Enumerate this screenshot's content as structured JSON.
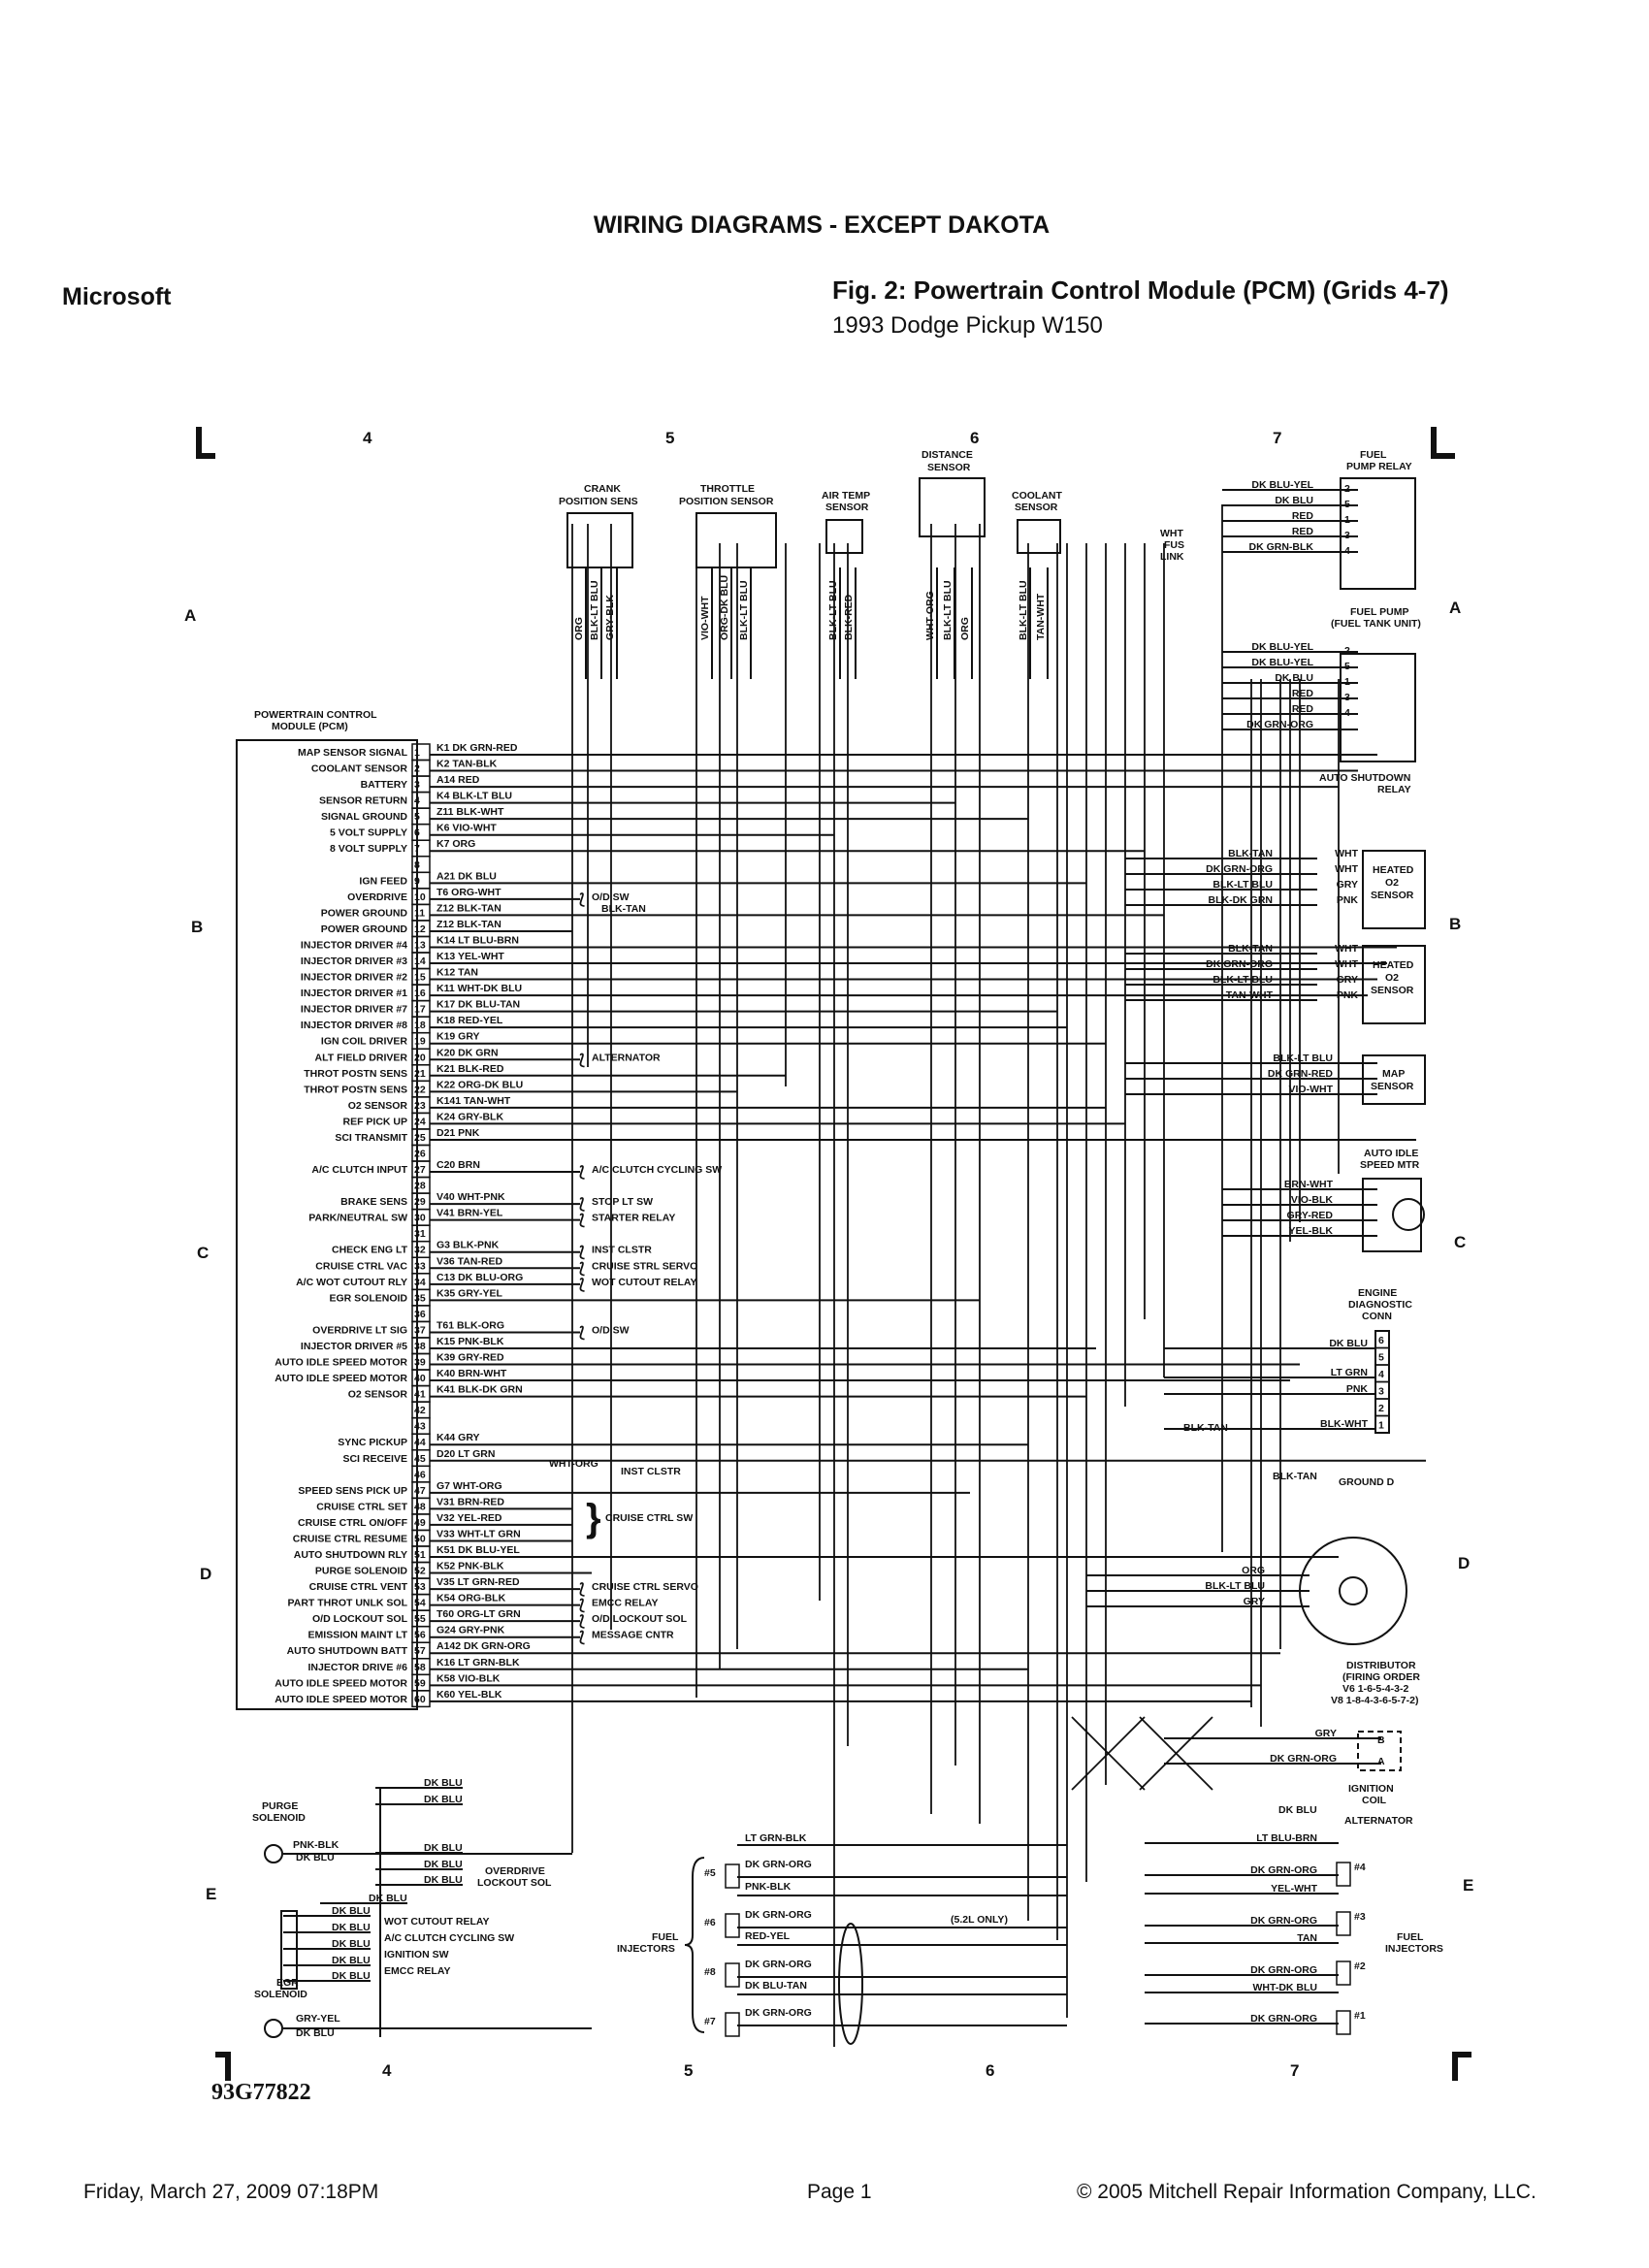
{
  "header": {
    "title": "WIRING DIAGRAMS - EXCEPT DAKOTA",
    "source": "Microsoft",
    "figure_title": "Fig. 2: Powertrain Control Module (PCM) (Grids 4-7)",
    "vehicle": "1993 Dodge Pickup W150"
  },
  "grid": {
    "columns": [
      "4",
      "5",
      "6",
      "7"
    ],
    "rows": [
      "A",
      "B",
      "C",
      "D",
      "E"
    ]
  },
  "pcm": {
    "title_line1": "POWERTRAIN CONTROL",
    "title_line2": "MODULE (PCM)",
    "pins": [
      {
        "num": "1",
        "func": "MAP SENSOR SIGNAL",
        "wire": "K1 DK GRN-RED",
        "dest": ""
      },
      {
        "num": "2",
        "func": "COOLANT SENSOR",
        "wire": "K2 TAN-BLK",
        "dest": ""
      },
      {
        "num": "3",
        "func": "BATTERY",
        "wire": "A14 RED",
        "dest": ""
      },
      {
        "num": "4",
        "func": "SENSOR RETURN",
        "wire": "K4 BLK-LT BLU",
        "dest": ""
      },
      {
        "num": "5",
        "func": "SIGNAL GROUND",
        "wire": "Z11 BLK-WHT",
        "dest": ""
      },
      {
        "num": "6",
        "func": "5 VOLT SUPPLY",
        "wire": "K6 VIO-WHT",
        "dest": ""
      },
      {
        "num": "7",
        "func": "8 VOLT SUPPLY",
        "wire": "K7 ORG",
        "dest": ""
      },
      {
        "num": "8",
        "func": "",
        "wire": "",
        "dest": ""
      },
      {
        "num": "9",
        "func": "IGN FEED",
        "wire": "A21 DK BLU",
        "dest": ""
      },
      {
        "num": "10",
        "func": "OVERDRIVE",
        "wire": "T6 ORG-WHT",
        "dest": "O/D SW"
      },
      {
        "num": "11",
        "func": "POWER GROUND",
        "wire": "Z12 BLK-TAN",
        "dest": ""
      },
      {
        "num": "12",
        "func": "POWER GROUND",
        "wire": "Z12 BLK-TAN",
        "dest": ""
      },
      {
        "num": "13",
        "func": "INJECTOR DRIVER #4",
        "wire": "K14 LT BLU-BRN",
        "dest": ""
      },
      {
        "num": "14",
        "func": "INJECTOR DRIVER #3",
        "wire": "K13 YEL-WHT",
        "dest": ""
      },
      {
        "num": "15",
        "func": "INJECTOR DRIVER #2",
        "wire": "K12 TAN",
        "dest": ""
      },
      {
        "num": "16",
        "func": "INJECTOR DRIVER #1",
        "wire": "K11 WHT-DK BLU",
        "dest": ""
      },
      {
        "num": "17",
        "func": "INJECTOR DRIVER #7",
        "wire": "K17 DK BLU-TAN",
        "dest": ""
      },
      {
        "num": "18",
        "func": "INJECTOR DRIVER #8",
        "wire": "K18 RED-YEL",
        "dest": ""
      },
      {
        "num": "19",
        "func": "IGN COIL DRIVER",
        "wire": "K19 GRY",
        "dest": ""
      },
      {
        "num": "20",
        "func": "ALT FIELD DRIVER",
        "wire": "K20 DK GRN",
        "dest": "ALTERNATOR"
      },
      {
        "num": "21",
        "func": "THROT POSTN SENS",
        "wire": "K21 BLK-RED",
        "dest": ""
      },
      {
        "num": "22",
        "func": "THROT POSTN SENS",
        "wire": "K22 ORG-DK BLU",
        "dest": ""
      },
      {
        "num": "23",
        "func": "O2 SENSOR",
        "wire": "K141 TAN-WHT",
        "dest": ""
      },
      {
        "num": "24",
        "func": "REF PICK UP",
        "wire": "K24 GRY-BLK",
        "dest": ""
      },
      {
        "num": "25",
        "func": "SCI TRANSMIT",
        "wire": "D21 PNK",
        "dest": ""
      },
      {
        "num": "26",
        "func": "",
        "wire": "",
        "dest": ""
      },
      {
        "num": "27",
        "func": "A/C CLUTCH INPUT",
        "wire": "C20 BRN",
        "dest": "A/C CLUTCH CYCLING SW"
      },
      {
        "num": "28",
        "func": "",
        "wire": "",
        "dest": ""
      },
      {
        "num": "29",
        "func": "BRAKE SENS",
        "wire": "V40 WHT-PNK",
        "dest": "STOP LT SW"
      },
      {
        "num": "30",
        "func": "PARK/NEUTRAL SW",
        "wire": "V41 BRN-YEL",
        "dest": "STARTER RELAY"
      },
      {
        "num": "31",
        "func": "",
        "wire": "",
        "dest": ""
      },
      {
        "num": "32",
        "func": "CHECK ENG LT",
        "wire": "G3 BLK-PNK",
        "dest": "INST CLSTR"
      },
      {
        "num": "33",
        "func": "CRUISE CTRL VAC",
        "wire": "V36 TAN-RED",
        "dest": "CRUISE STRL SERVO"
      },
      {
        "num": "34",
        "func": "A/C WOT CUTOUT RLY",
        "wire": "C13 DK BLU-ORG",
        "dest": "WOT CUTOUT RELAY"
      },
      {
        "num": "35",
        "func": "EGR SOLENOID",
        "wire": "K35 GRY-YEL",
        "dest": ""
      },
      {
        "num": "36",
        "func": "",
        "wire": "",
        "dest": ""
      },
      {
        "num": "37",
        "func": "OVERDRIVE LT SIG",
        "wire": "T61 BLK-ORG",
        "dest": "O/D SW"
      },
      {
        "num": "38",
        "func": "INJECTOR DRIVER #5",
        "wire": "K15 PNK-BLK",
        "dest": ""
      },
      {
        "num": "39",
        "func": "AUTO IDLE SPEED MOTOR",
        "wire": "K39 GRY-RED",
        "dest": ""
      },
      {
        "num": "40",
        "func": "AUTO IDLE SPEED MOTOR",
        "wire": "K40 BRN-WHT",
        "dest": ""
      },
      {
        "num": "41",
        "func": "O2 SENSOR",
        "wire": "K41 BLK-DK GRN",
        "dest": ""
      },
      {
        "num": "42",
        "func": "",
        "wire": "",
        "dest": ""
      },
      {
        "num": "43",
        "func": "",
        "wire": "",
        "dest": ""
      },
      {
        "num": "44",
        "func": "SYNC PICKUP",
        "wire": "K44 GRY",
        "dest": ""
      },
      {
        "num": "45",
        "func": "SCI RECEIVE",
        "wire": "D20 LT GRN",
        "dest": ""
      },
      {
        "num": "46",
        "func": "",
        "wire": "",
        "dest": ""
      },
      {
        "num": "47",
        "func": "SPEED SENS PICK UP",
        "wire": "G7 WHT-ORG",
        "dest": ""
      },
      {
        "num": "48",
        "func": "CRUISE CTRL SET",
        "wire": "V31 BRN-RED",
        "dest": ""
      },
      {
        "num": "49",
        "func": "CRUISE CTRL ON/OFF",
        "wire": "V32 YEL-RED",
        "dest": ""
      },
      {
        "num": "50",
        "func": "CRUISE CTRL RESUME",
        "wire": "V33 WHT-LT GRN",
        "dest": ""
      },
      {
        "num": "51",
        "func": "AUTO SHUTDOWN RLY",
        "wire": "K51 DK BLU-YEL",
        "dest": ""
      },
      {
        "num": "52",
        "func": "PURGE SOLENOID",
        "wire": "K52 PNK-BLK",
        "dest": ""
      },
      {
        "num": "53",
        "func": "CRUISE CTRL VENT",
        "wire": "V35 LT GRN-RED",
        "dest": "CRUISE CTRL SERVO"
      },
      {
        "num": "54",
        "func": "PART THROT UNLK SOL",
        "wire": "K54 ORG-BLK",
        "dest": "EMCC RELAY"
      },
      {
        "num": "55",
        "func": "O/D LOCKOUT SOL",
        "wire": "T60 ORG-LT GRN",
        "dest": "O/D LOCKOUT SOL"
      },
      {
        "num": "56",
        "func": "EMISSION MAINT LT",
        "wire": "G24 GRY-PNK",
        "dest": "MESSAGE CNTR"
      },
      {
        "num": "57",
        "func": "AUTO SHUTDOWN BATT",
        "wire": "A142 DK GRN-ORG",
        "dest": ""
      },
      {
        "num": "58",
        "func": "INJECTOR DRIVE #6",
        "wire": "K16 LT GRN-BLK",
        "dest": ""
      },
      {
        "num": "59",
        "func": "AUTO IDLE SPEED MOTOR",
        "wire": "K58 VIO-BLK",
        "dest": ""
      },
      {
        "num": "60",
        "func": "AUTO IDLE SPEED MOTOR",
        "wire": "K60 YEL-BLK",
        "dest": ""
      }
    ],
    "blk_tan": "BLK-TAN",
    "wht_org": "WHT-ORG",
    "wht_org_dest": "INST CLSTR",
    "cruise_sw": "CRUISE CTRL SW"
  },
  "top_sensors": {
    "crank": {
      "l1": "CRANK",
      "l2": "POSITION SENS",
      "wires": [
        "ORG",
        "BLK-LT BLU",
        "GRY-BLK"
      ]
    },
    "throttle": {
      "l1": "THROTTLE",
      "l2": "POSITION SENSOR",
      "wires": [
        "VIO-WHT",
        "ORG-DK BLU",
        "BLK-LT BLU"
      ]
    },
    "air_temp": {
      "l1": "AIR TEMP",
      "l2": "SENSOR",
      "wires": [
        "BLK-LT BLU",
        "BLK-RED"
      ]
    },
    "distance": {
      "l1": "DISTANCE",
      "l2": "SENSOR",
      "wires": [
        "WHT-ORG",
        "BLK-LT BLU",
        "ORG"
      ]
    },
    "coolant": {
      "l1": "COOLANT",
      "l2": "SENSOR",
      "wires": [
        "BLK-LT BLU",
        "TAN-WHT"
      ]
    }
  },
  "right": {
    "fuel_pump_relay": {
      "l1": "FUEL",
      "l2": "PUMP RELAY",
      "wires": [
        "DK BLU-YEL",
        "DK BLU",
        "RED",
        "RED",
        "DK GRN-BLK"
      ],
      "pins": [
        "2",
        "5",
        "1",
        "3",
        "4"
      ],
      "fuse_l1": "WHT",
      "fuse_l2": "FUS",
      "fuse_l3": "LINK",
      "pump_l1": "FUEL PUMP",
      "pump_l2": "(FUEL TANK UNIT)"
    },
    "asd_relay": {
      "l1": "AUTO SHUTDOWN",
      "l2": "RELAY",
      "wires": [
        "DK BLU-YEL",
        "DK BLU-YEL",
        "DK BLU",
        "RED",
        "RED",
        "DK GRN-ORG"
      ],
      "pins": [
        "2",
        "5",
        "1",
        "3",
        "4"
      ]
    },
    "o2_1": {
      "l1": "HEATED",
      "l2": "O2",
      "l3": "SENSOR",
      "wires": [
        "BLK-TAN",
        "DK GRN-ORG",
        "BLK-LT BLU",
        "BLK-DK GRN"
      ],
      "pins": [
        "WHT",
        "WHT",
        "GRY",
        "PNK"
      ]
    },
    "o2_2": {
      "l1": "HEATED",
      "l2": "O2",
      "l3": "SENSOR",
      "wires": [
        "BLK-TAN",
        "DK GRN-ORG",
        "BLK-LT BLU",
        "TAN-WHT"
      ],
      "pins": [
        "WHT",
        "WHT",
        "GRY",
        "PNK"
      ]
    },
    "map": {
      "l1": "MAP",
      "l2": "SENSOR",
      "wires": [
        "BLK-LT BLU",
        "DK GRN-RED",
        "VIO-WHT"
      ]
    },
    "ais": {
      "l1": "AUTO IDLE",
      "l2": "SPEED MTR",
      "wires": [
        "BRN-WHT",
        "VIO-BLK",
        "GRY-RED",
        "YEL-BLK"
      ]
    },
    "diag": {
      "l1": "ENGINE",
      "l2": "DIAGNOSTIC",
      "l3": "CONN",
      "pins": [
        "6",
        "5",
        "4",
        "3",
        "2",
        "1"
      ],
      "wires": [
        "DK BLU",
        "LT GRN",
        "PNK",
        "BLK-WHT"
      ],
      "blk_tan": "BLK-TAN",
      "ground_wire": "BLK-TAN",
      "ground": "GROUND D"
    },
    "distributor": {
      "wires": [
        "ORG",
        "BLK-LT BLU",
        "GRY"
      ],
      "l1": "DISTRIBUTOR",
      "l2": "(FIRING ORDER",
      "l3": "V6 1-6-5-4-3-2",
      "l4": "V8 1-8-4-3-6-5-7-2)"
    },
    "coil": {
      "wires": [
        "GRY",
        "DK GRN-ORG"
      ],
      "pins": [
        "B",
        "A"
      ],
      "l1": "IGNITION",
      "l2": "COIL"
    },
    "alternator": {
      "wire": "DK BLU",
      "label": "ALTERNATOR"
    },
    "injectors": {
      "wires": [
        "LT BLU-BRN",
        "DK GRN-ORG",
        "YEL-WHT",
        "DK GRN-ORG",
        "TAN",
        "DK GRN-ORG",
        "WHT-DK BLU",
        "DK GRN-ORG"
      ],
      "nums": [
        "#4",
        "#3",
        "#2",
        "#1"
      ],
      "l1": "FUEL",
      "l2": "INJECTORS"
    }
  },
  "left_injectors": {
    "wires": [
      "LT GRN-BLK",
      "DK GRN-ORG",
      "PNK-BLK",
      "DK GRN-ORG",
      "RED-YEL",
      "DK GRN-ORG",
      "DK BLU-TAN",
      "DK GRN-ORG"
    ],
    "nums": [
      "#5",
      "#6",
      "#8",
      "#7"
    ],
    "note": "(5.2L ONLY)",
    "l1": "FUEL",
    "l2": "INJECTORS"
  },
  "lower_left": {
    "purge": {
      "l1": "PURGE",
      "l2": "SOLENOID",
      "wires": [
        "PNK-BLK",
        "DK BLU"
      ]
    },
    "egr": {
      "l1": "EGR",
      "l2": "SOLENOID",
      "wires": [
        "GRY-YEL",
        "DK BLU"
      ]
    },
    "dk_blu": "DK BLU",
    "od_lockout": "OVERDRIVE",
    "od_lockout2": "LOCKOUT SOL",
    "wot": "WOT CUTOUT RELAY",
    "ac": "A/C CLUTCH CYCLING SW",
    "ign": "IGNITION SW",
    "emcc": "EMCC RELAY"
  },
  "diagram_code": "93G77822",
  "footer": {
    "date": "Friday, March 27, 2009  07:18PM",
    "page": "Page 1",
    "copyright": "© 2005 Mitchell Repair Information Company, LLC."
  }
}
